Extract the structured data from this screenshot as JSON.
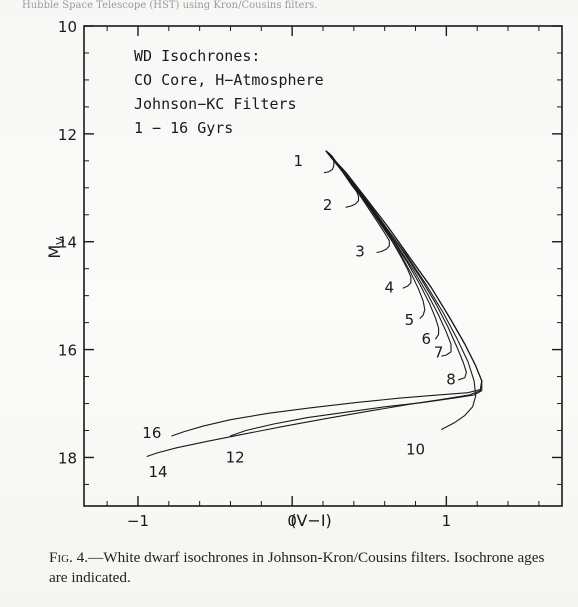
{
  "header_strip_text": "Hubble Space Telescope (HST) using Kron/Cousins filters.",
  "caption": {
    "label": "Fig. 4.—",
    "text": "White dwarf isochrones in Johnson-Kron/Cousins filters. Isochrone ages are indicated."
  },
  "chart_data": {
    "type": "line",
    "xlabel": "(V−I)",
    "ylabel": "M",
    "ylabel_subscript": "V",
    "xlim": [
      -1.35,
      1.75
    ],
    "ylim": [
      10,
      18.9
    ],
    "y_inverted": true,
    "x_ticks": [
      -1,
      0,
      1
    ],
    "x_tick_labels": [
      "−1",
      "0",
      "1"
    ],
    "y_ticks": [
      10,
      12,
      14,
      16,
      18
    ],
    "y_tick_labels": [
      "10",
      "12",
      "14",
      "16",
      "18"
    ],
    "grid": false,
    "annotation_box": {
      "lines": [
        "WD Isochrones:",
        "CO Core, H−Atmosphere",
        "Johnson−KC Filters",
        "1 − 16 Gyrs"
      ]
    },
    "series_color": "#1a1a1a",
    "series": [
      {
        "name": "1",
        "label_at": [
          0.04,
          12.5
        ],
        "x": [
          0.22,
          0.24,
          0.26,
          0.27,
          0.27,
          0.26,
          0.24,
          0.21
        ],
        "y": [
          12.32,
          12.36,
          12.42,
          12.5,
          12.6,
          12.66,
          12.7,
          12.72
        ]
      },
      {
        "name": "2",
        "label_at": [
          0.23,
          13.32
        ],
        "x": [
          0.22,
          0.26,
          0.3,
          0.34,
          0.38,
          0.42,
          0.43,
          0.43,
          0.41,
          0.38,
          0.35
        ],
        "y": [
          12.32,
          12.42,
          12.58,
          12.76,
          12.93,
          13.08,
          13.16,
          13.24,
          13.3,
          13.34,
          13.36
        ]
      },
      {
        "name": "3",
        "label_at": [
          0.44,
          14.18
        ],
        "x": [
          0.22,
          0.28,
          0.35,
          0.42,
          0.49,
          0.55,
          0.6,
          0.63,
          0.63,
          0.61,
          0.58,
          0.55
        ],
        "y": [
          12.32,
          12.52,
          12.78,
          13.06,
          13.36,
          13.62,
          13.84,
          13.98,
          14.08,
          14.14,
          14.18,
          14.2
        ]
      },
      {
        "name": "4",
        "label_at": [
          0.63,
          14.85
        ],
        "x": [
          0.22,
          0.3,
          0.39,
          0.48,
          0.57,
          0.65,
          0.71,
          0.75,
          0.77,
          0.77,
          0.75,
          0.72
        ],
        "y": [
          12.32,
          12.6,
          12.92,
          13.28,
          13.66,
          14.0,
          14.3,
          14.52,
          14.66,
          14.76,
          14.82,
          14.86
        ]
      },
      {
        "name": "5",
        "label_at": [
          0.76,
          15.45
        ],
        "x": [
          0.22,
          0.31,
          0.41,
          0.51,
          0.61,
          0.7,
          0.77,
          0.82,
          0.85,
          0.86,
          0.85,
          0.83
        ],
        "y": [
          12.32,
          12.64,
          13.0,
          13.4,
          13.82,
          14.22,
          14.58,
          14.88,
          15.1,
          15.26,
          15.36,
          15.42
        ]
      },
      {
        "name": "6",
        "label_at": [
          0.87,
          15.8
        ],
        "x": [
          0.22,
          0.32,
          0.43,
          0.54,
          0.65,
          0.75,
          0.83,
          0.89,
          0.93,
          0.95,
          0.95,
          0.93
        ],
        "y": [
          12.32,
          12.66,
          13.06,
          13.5,
          13.96,
          14.4,
          14.8,
          15.14,
          15.42,
          15.6,
          15.72,
          15.8
        ]
      },
      {
        "name": "7",
        "label_at": [
          0.95,
          16.05
        ],
        "x": [
          0.22,
          0.32,
          0.44,
          0.56,
          0.68,
          0.79,
          0.88,
          0.95,
          1.0,
          1.03,
          1.03,
          1.0,
          0.97
        ],
        "y": [
          12.32,
          12.68,
          13.1,
          13.56,
          14.06,
          14.54,
          14.98,
          15.36,
          15.68,
          15.9,
          16.04,
          16.1,
          16.12
        ]
      },
      {
        "name": "8",
        "label_at": [
          1.03,
          16.55
        ],
        "x": [
          0.22,
          0.33,
          0.45,
          0.58,
          0.71,
          0.83,
          0.93,
          1.01,
          1.07,
          1.11,
          1.13,
          1.12,
          1.08
        ],
        "y": [
          12.32,
          12.7,
          13.14,
          13.62,
          14.14,
          14.66,
          15.14,
          15.58,
          15.96,
          16.24,
          16.42,
          16.52,
          16.56
        ]
      },
      {
        "name": "10",
        "label_at": [
          0.8,
          17.85
        ],
        "x": [
          0.22,
          0.34,
          0.47,
          0.6,
          0.74,
          0.87,
          0.98,
          1.07,
          1.14,
          1.18,
          1.19,
          1.17,
          1.12,
          1.05,
          0.97
        ],
        "y": [
          12.32,
          12.72,
          13.18,
          13.7,
          14.24,
          14.8,
          15.32,
          15.8,
          16.22,
          16.58,
          16.86,
          17.06,
          17.22,
          17.36,
          17.48
        ]
      },
      {
        "name": "12",
        "label_at": [
          -0.37,
          18.0
        ],
        "x": [
          0.22,
          0.35,
          0.48,
          0.62,
          0.76,
          0.9,
          1.02,
          1.12,
          1.19,
          1.23,
          1.23,
          1.18,
          1.05,
          0.85,
          0.6,
          0.35,
          0.1,
          -0.12,
          -0.3,
          -0.4
        ],
        "y": [
          12.32,
          12.72,
          13.2,
          13.72,
          14.28,
          14.84,
          15.4,
          15.9,
          16.3,
          16.58,
          16.76,
          16.84,
          16.9,
          16.98,
          17.06,
          17.16,
          17.26,
          17.38,
          17.5,
          17.6
        ]
      },
      {
        "name": "14",
        "label_at": [
          -0.87,
          18.27
        ],
        "x": [
          0.22,
          0.35,
          0.48,
          0.62,
          0.76,
          0.9,
          1.02,
          1.12,
          1.19,
          1.23,
          1.22,
          1.15,
          0.98,
          0.75,
          0.5,
          0.22,
          -0.05,
          -0.3,
          -0.55,
          -0.75,
          -0.88,
          -0.94
        ],
        "y": [
          12.32,
          12.72,
          13.2,
          13.72,
          14.28,
          14.84,
          15.4,
          15.9,
          16.3,
          16.58,
          16.76,
          16.84,
          16.92,
          17.02,
          17.14,
          17.28,
          17.42,
          17.56,
          17.7,
          17.82,
          17.92,
          17.98
        ]
      },
      {
        "name": "16",
        "label_at": [
          -0.91,
          17.55
        ],
        "x": [
          0.22,
          0.35,
          0.48,
          0.62,
          0.76,
          0.9,
          1.02,
          1.12,
          1.19,
          1.23,
          1.22,
          1.14,
          0.95,
          0.7,
          0.42,
          0.12,
          -0.15,
          -0.4,
          -0.58,
          -0.7,
          -0.78
        ],
        "y": [
          12.32,
          12.72,
          13.2,
          13.72,
          14.28,
          14.84,
          15.4,
          15.9,
          16.3,
          16.58,
          16.74,
          16.8,
          16.84,
          16.9,
          16.98,
          17.08,
          17.18,
          17.3,
          17.42,
          17.52,
          17.6
        ]
      }
    ]
  }
}
